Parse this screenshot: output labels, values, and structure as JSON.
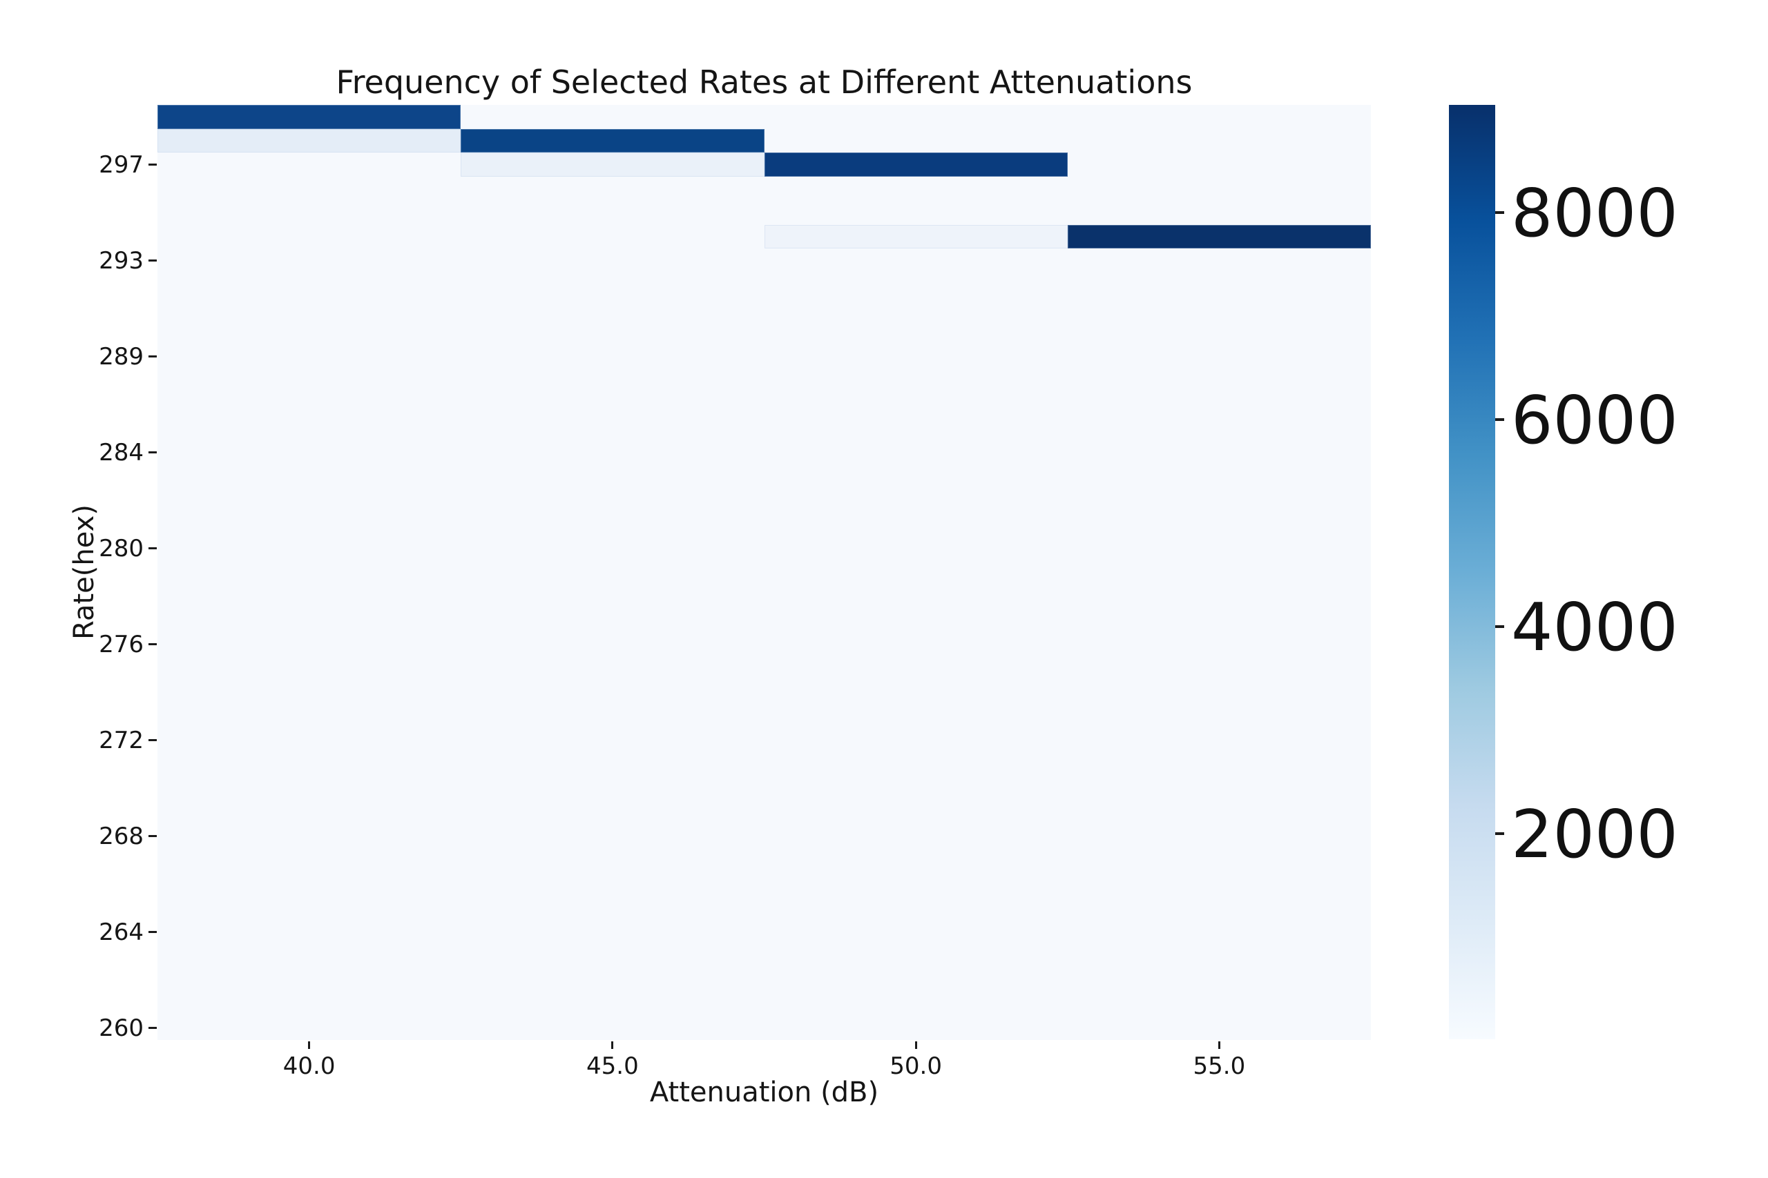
{
  "figure": {
    "background_color": "#ffffff"
  },
  "chart_data": {
    "type": "heatmap",
    "title": "Frequency of Selected Rates at Different Attenuations",
    "xlabel": "Attenuation (dB)",
    "ylabel": "Rate(hex)",
    "x_tick_labels": [
      "40.0",
      "45.0",
      "50.0",
      "55.0"
    ],
    "y_tick_labels": [
      "297",
      "293",
      "289",
      "284",
      "280",
      "276",
      "272",
      "268",
      "264",
      "260"
    ],
    "y_tick_row_indices": [
      2,
      6,
      10,
      14,
      18,
      22,
      26,
      30,
      34,
      38
    ],
    "y_axis_top_rate": "299",
    "y_axis_bottom_rate": "260",
    "n_rows": 39,
    "n_cols": 4,
    "grid": false,
    "colormap_name": "Blues",
    "vmin": 13,
    "vmax": 9040,
    "baseline": {
      "value": 60,
      "color": "#f6f9fd"
    },
    "cells": [
      {
        "col": 0,
        "row": 0,
        "attenuation": "40.0",
        "rate": "299",
        "value": 8300,
        "color": "#0d4589"
      },
      {
        "col": 0,
        "row": 1,
        "attenuation": "40.0",
        "rate": "298",
        "value": 850,
        "color": "#e4edf7"
      },
      {
        "col": 1,
        "row": 1,
        "attenuation": "45.0",
        "rate": "298",
        "value": 8400,
        "color": "#0a4486"
      },
      {
        "col": 1,
        "row": 2,
        "attenuation": "45.0",
        "rate": "297",
        "value": 700,
        "color": "#eaf1f9"
      },
      {
        "col": 2,
        "row": 2,
        "attenuation": "50.0",
        "rate": "297",
        "value": 8650,
        "color": "#0a3c7e"
      },
      {
        "col": 2,
        "row": 5,
        "attenuation": "50.0",
        "rate": "294",
        "value": 420,
        "color": "#eef3fa"
      },
      {
        "col": 3,
        "row": 5,
        "attenuation": "55.0",
        "rate": "294",
        "value": 9040,
        "color": "#0a326b"
      }
    ],
    "colorbar": {
      "position": "right",
      "ticks": [
        8000,
        6000,
        4000,
        2000
      ],
      "gradient_stops_top_to_bottom": [
        "#08306b",
        "#08519c",
        "#2171b5",
        "#4292c6",
        "#6baed6",
        "#9ecae1",
        "#c6dbef",
        "#deebf7",
        "#f7fbff"
      ]
    }
  }
}
